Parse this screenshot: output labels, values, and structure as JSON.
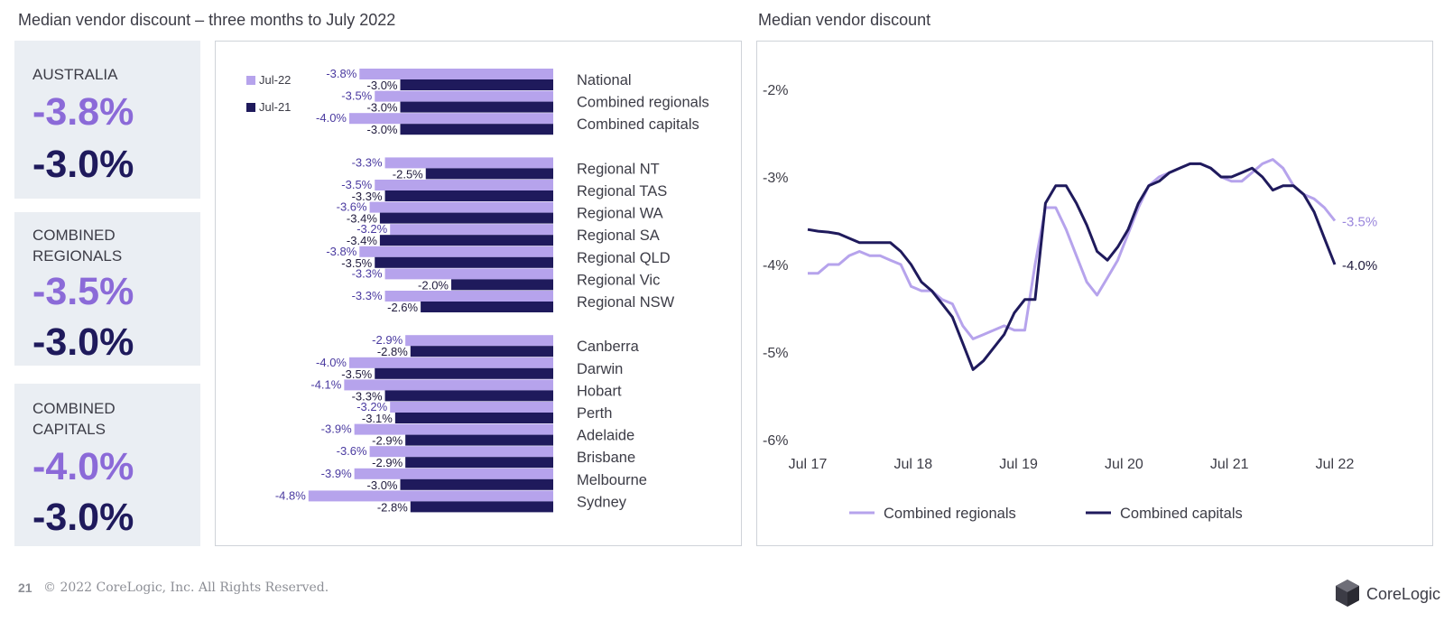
{
  "left_title": "Median vendor discount – three months to July 2022",
  "right_title": "Median vendor discount",
  "kpis": [
    {
      "label_line1": "AUSTRALIA",
      "label_line2": "",
      "v2022": "-3.8%",
      "v2021": "-3.0%"
    },
    {
      "label_line1": "COMBINED",
      "label_line2": "REGIONALS",
      "v2022": "-3.5%",
      "v2021": "-3.0%"
    },
    {
      "label_line1": "COMBINED",
      "label_line2": "CAPITALS",
      "v2022": "-4.0%",
      "v2021": "-3.0%"
    }
  ],
  "colors": {
    "jul22": "#b6a3ec",
    "jul21": "#1f1a5c",
    "regionals_line": "#b6a3ec",
    "capitals_line": "#1f1a5c"
  },
  "chart_data": [
    {
      "type": "bar",
      "orientation": "horizontal",
      "legend": [
        "Jul-22",
        "Jul-21"
      ],
      "legend_position": "top-left",
      "categories": [
        "National",
        "Combined regionals",
        "Combined capitals",
        "Regional NT",
        "Regional TAS",
        "Regional WA",
        "Regional SA",
        "Regional QLD",
        "Regional Vic",
        "Regional NSW",
        "Canberra",
        "Darwin",
        "Hobart",
        "Perth",
        "Adelaide",
        "Brisbane",
        "Melbourne",
        "Sydney"
      ],
      "groups": [
        3,
        7,
        8
      ],
      "series": [
        {
          "name": "Jul-22",
          "values": [
            -3.8,
            -3.5,
            -4.0,
            -3.3,
            -3.5,
            -3.6,
            -3.2,
            -3.8,
            -3.3,
            -3.3,
            -2.9,
            -4.0,
            -4.1,
            -3.2,
            -3.9,
            -3.6,
            -3.9,
            -4.8
          ]
        },
        {
          "name": "Jul-21",
          "values": [
            -3.0,
            -3.0,
            -3.0,
            -2.5,
            -3.3,
            -3.4,
            -3.4,
            -3.5,
            -2.0,
            -2.6,
            -2.8,
            -3.5,
            -3.3,
            -3.1,
            -2.9,
            -2.9,
            -3.0,
            -2.8
          ]
        }
      ],
      "labels_2022": [
        "-3.8%",
        "-3.5%",
        "-4.0%",
        "-3.3%",
        "-3.5%",
        "-3.6%",
        "-3.2%",
        "-3.8%",
        "-3.3%",
        "-3.3%",
        "-2.9%",
        "-4.0%",
        "-4.1%",
        "-3.2%",
        "-3.9%",
        "-3.6%",
        "-3.9%",
        "-4.8%"
      ],
      "labels_2021": [
        "-3.0%",
        "-3.0%",
        "-3.0%",
        "-2.5%",
        "-3.3%",
        "-3.4%",
        "-3.4%",
        "-3.5%",
        "-2.0%",
        "-2.6%",
        "-2.8%",
        "-3.5%",
        "-3.3%",
        "-3.1%",
        "-2.9%",
        "-2.9%",
        "-3.0%",
        "-2.8%"
      ],
      "grid": false
    },
    {
      "type": "line",
      "x_start": "2017-07",
      "x_end": "2022-07",
      "x_ticks": [
        "Jul 17",
        "Jul 18",
        "Jul 19",
        "Jul 20",
        "Jul 21",
        "Jul 22"
      ],
      "y_ticks": [
        "-2%",
        "-3%",
        "-4%",
        "-5%",
        "-6%"
      ],
      "ylim": [
        -6,
        -2
      ],
      "grid": false,
      "legend_position": "bottom",
      "series": [
        {
          "name": "Combined regionals",
          "end_label": "-3.5%",
          "values": [
            -4.1,
            -4.1,
            -4.0,
            -4.0,
            -3.9,
            -3.85,
            -3.9,
            -3.9,
            -3.95,
            -4.0,
            -4.25,
            -4.3,
            -4.3,
            -4.4,
            -4.45,
            -4.7,
            -4.85,
            -4.8,
            -4.75,
            -4.7,
            -4.75,
            -4.75,
            -4.0,
            -3.35,
            -3.35,
            -3.6,
            -3.9,
            -4.2,
            -4.35,
            -4.15,
            -3.95,
            -3.65,
            -3.35,
            -3.1,
            -3.0,
            -2.95,
            -2.9,
            -2.85,
            -2.85,
            -2.9,
            -3.0,
            -3.05,
            -3.05,
            -2.95,
            -2.85,
            -2.8,
            -2.9,
            -3.1,
            -3.2,
            -3.25,
            -3.35,
            -3.5
          ]
        },
        {
          "name": "Combined capitals",
          "end_label": "-4.0%",
          "values": [
            -3.6,
            -3.62,
            -3.63,
            -3.65,
            -3.7,
            -3.75,
            -3.75,
            -3.75,
            -3.75,
            -3.85,
            -4.0,
            -4.2,
            -4.3,
            -4.45,
            -4.6,
            -4.9,
            -5.2,
            -5.1,
            -4.95,
            -4.8,
            -4.55,
            -4.4,
            -4.4,
            -3.3,
            -3.1,
            -3.1,
            -3.3,
            -3.55,
            -3.85,
            -3.95,
            -3.8,
            -3.6,
            -3.3,
            -3.1,
            -3.05,
            -2.95,
            -2.9,
            -2.85,
            -2.85,
            -2.9,
            -3.0,
            -3.0,
            -2.95,
            -2.9,
            -3.0,
            -3.15,
            -3.1,
            -3.1,
            -3.2,
            -3.4,
            -3.7,
            -4.0
          ]
        }
      ]
    }
  ],
  "footer": {
    "page": "21",
    "copyright": "© 2022 CoreLogic, Inc. All Rights Reserved."
  },
  "logo": {
    "text": "CoreLogic",
    "icon": "corelogic-cube-icon"
  }
}
